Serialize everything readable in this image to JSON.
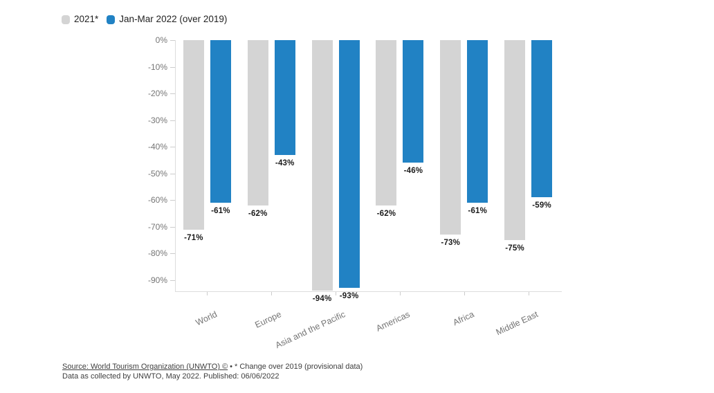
{
  "legend": {
    "items": [
      {
        "label": "2021*",
        "color": "#d4d4d4"
      },
      {
        "label": "Jan-Mar 2022 (over 2019)",
        "color": "#2182c4"
      }
    ]
  },
  "chart_data": {
    "type": "bar",
    "title": "",
    "xlabel": "",
    "ylabel": "",
    "categories": [
      "World",
      "Europe",
      "Asia and the Pacific",
      "Americas",
      "Africa",
      "Middle East"
    ],
    "series": [
      {
        "name": "2021*",
        "color": "#d4d4d4",
        "values": [
          -71,
          -62,
          -94,
          -62,
          -73,
          -75
        ]
      },
      {
        "name": "Jan-Mar 2022 (over 2019)",
        "color": "#2182c4",
        "values": [
          -61,
          -43,
          -93,
          -46,
          -61,
          -59
        ]
      }
    ],
    "value_suffix": "%",
    "ylim": [
      -94.2,
      0
    ],
    "yticks": [
      0,
      -10,
      -20,
      -30,
      -40,
      -50,
      -60,
      -70,
      -80,
      -90
    ],
    "grid": false,
    "legend_position": "top-left",
    "data_labels": true
  },
  "footer": {
    "source_link": "Source: World Tourism Organization (UNWTO) ©",
    "separator": "•",
    "note": "* Change over 2019 (provisional data)",
    "line2": "Data as collected by UNWTO, May 2022. Published: 06/06/2022"
  },
  "colors": {
    "background": "#ffffff",
    "bar_2021": "#d4d4d4",
    "bar_2022": "#2182c4",
    "axis_line": "#dcdcdc",
    "tick_mark": "#cccccc",
    "axis_text": "#757575",
    "data_label_text": "#1a1a1a",
    "legend_text": "#1f1f1f",
    "footer_text": "#3d3d3d"
  }
}
